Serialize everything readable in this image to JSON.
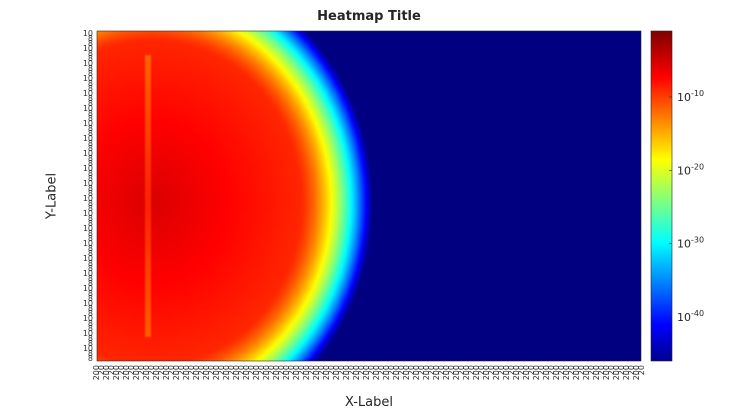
{
  "chart_data": {
    "type": "heatmap",
    "title": "Heatmap Title",
    "xlabel": "X-Label",
    "ylabel": "Y-Label",
    "colormap": "jet",
    "color_scale": "log",
    "colorbar": {
      "ticks": [
        {
          "exponent": "-10",
          "value": 1e-10
        },
        {
          "exponent": "-20",
          "value": 1e-20
        },
        {
          "exponent": "-30",
          "value": 1e-30
        },
        {
          "exponent": "-40",
          "value": 1e-40
        }
      ],
      "range_log10": [
        -46,
        -1
      ]
    },
    "tick_base": "10",
    "description_of_field": {
      "peak_log10": -3,
      "background_log10": -46
    }
  }
}
